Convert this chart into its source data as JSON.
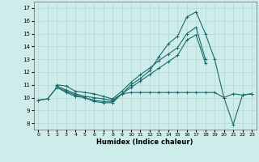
{
  "xlabel": "Humidex (Indice chaleur)",
  "xlim": [
    -0.5,
    23.5
  ],
  "ylim": [
    7.5,
    17.5
  ],
  "xticks": [
    0,
    1,
    2,
    3,
    4,
    5,
    6,
    7,
    8,
    9,
    10,
    11,
    12,
    13,
    14,
    15,
    16,
    17,
    18,
    19,
    20,
    21,
    22,
    23
  ],
  "yticks": [
    8,
    9,
    10,
    11,
    12,
    13,
    14,
    15,
    16,
    17
  ],
  "bg_color": "#ceecea",
  "grid_color": "#b2d8d5",
  "line_color": "#1a6b6b",
  "lines": [
    {
      "x": [
        0,
        1,
        2,
        3,
        4,
        5,
        6,
        7,
        8,
        9,
        10,
        11,
        12,
        13,
        14,
        15,
        16,
        17,
        18,
        19,
        20,
        21,
        22,
        23
      ],
      "y": [
        9.8,
        9.9,
        10.8,
        10.4,
        10.1,
        10.0,
        9.7,
        9.6,
        9.6,
        10.3,
        10.4,
        10.4,
        10.4,
        10.4,
        10.4,
        10.4,
        10.4,
        10.4,
        10.4,
        10.4,
        10.0,
        10.3,
        10.2,
        10.3
      ]
    },
    {
      "x": [
        0,
        1,
        2,
        3,
        4,
        5,
        6,
        7,
        8,
        9,
        10,
        11,
        12,
        13,
        14,
        15,
        16,
        17,
        18,
        19,
        20,
        21,
        22,
        23
      ],
      "y": [
        9.8,
        9.9,
        10.8,
        10.5,
        10.2,
        10.0,
        9.8,
        9.7,
        9.7,
        10.3,
        11.0,
        11.5,
        12.1,
        13.2,
        14.2,
        14.8,
        16.3,
        16.7,
        15.0,
        13.0,
        10.0,
        7.9,
        10.2,
        10.3
      ]
    },
    {
      "x": [
        2,
        3,
        4,
        5,
        6,
        7,
        8,
        9,
        10,
        11,
        12,
        13,
        14,
        15,
        16,
        17,
        18
      ],
      "y": [
        11.0,
        10.9,
        10.5,
        10.4,
        10.3,
        10.1,
        9.9,
        10.5,
        11.2,
        11.8,
        12.3,
        12.9,
        13.4,
        13.9,
        15.0,
        15.5,
        13.0
      ]
    },
    {
      "x": [
        2,
        3,
        4,
        5,
        6,
        7,
        8,
        9,
        10,
        11,
        12,
        13,
        14,
        15,
        16,
        17,
        18
      ],
      "y": [
        10.9,
        10.6,
        10.3,
        10.1,
        10.0,
        9.9,
        9.8,
        10.3,
        10.8,
        11.3,
        11.8,
        12.3,
        12.8,
        13.3,
        14.5,
        14.9,
        12.7
      ]
    }
  ]
}
